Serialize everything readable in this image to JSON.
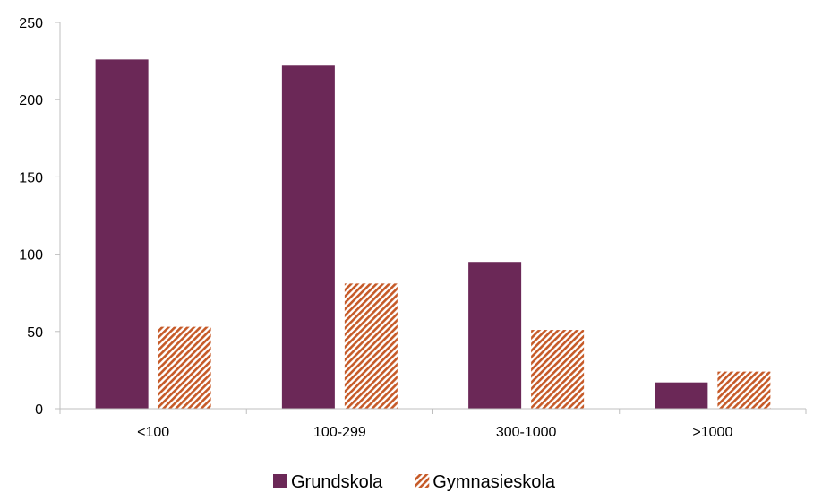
{
  "chart_data": {
    "type": "bar",
    "categories": [
      "<100",
      "100-299",
      "300-1000",
      ">1000"
    ],
    "series": [
      {
        "name": "Grundskola",
        "values": [
          226,
          222,
          95,
          17
        ],
        "color": "#6B2857",
        "fill": "solid"
      },
      {
        "name": "Gymnasieskola",
        "values": [
          53,
          81,
          51,
          24
        ],
        "color": "#C65A28",
        "fill": "hatch"
      }
    ],
    "ylim": [
      0,
      250
    ],
    "yticks": [
      0,
      50,
      100,
      150,
      200,
      250
    ],
    "grid": false,
    "legend": "bottom"
  }
}
